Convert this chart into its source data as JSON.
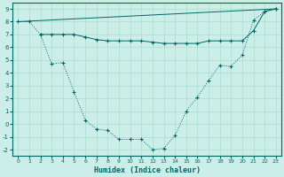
{
  "xlabel": "Humidex (Indice chaleur)",
  "bg_color": "#cceee8",
  "line_color": "#006666",
  "grid_color": "#aaddcc",
  "xlim": [
    -0.5,
    23.5
  ],
  "ylim": [
    -2.5,
    9.5
  ],
  "xticks": [
    0,
    1,
    2,
    3,
    4,
    5,
    6,
    7,
    8,
    9,
    10,
    11,
    12,
    13,
    14,
    15,
    16,
    17,
    18,
    19,
    20,
    21,
    22,
    23
  ],
  "yticks": [
    -2,
    -1,
    0,
    1,
    2,
    3,
    4,
    5,
    6,
    7,
    8,
    9
  ],
  "line1_x": [
    0,
    1,
    2,
    3,
    4,
    5,
    6,
    7,
    8,
    9,
    10,
    11,
    12,
    13,
    14,
    15,
    16,
    17,
    18,
    19,
    20,
    21,
    22,
    23
  ],
  "line1_y": [
    8.0,
    8.0,
    7.0,
    4.7,
    4.8,
    2.5,
    0.3,
    -0.4,
    -0.5,
    -1.2,
    -1.2,
    -1.2,
    -2.0,
    -1.9,
    -0.9,
    1.0,
    2.1,
    3.4,
    4.6,
    4.5,
    5.4,
    8.1,
    8.8,
    9.0
  ],
  "line2_x": [
    0,
    23
  ],
  "line2_y": [
    8.0,
    9.0
  ],
  "line3_x": [
    2,
    3,
    4,
    5,
    6,
    7,
    8,
    9,
    10,
    11,
    12,
    13,
    14,
    15,
    16,
    17,
    18,
    19,
    20,
    21,
    22,
    23
  ],
  "line3_y": [
    7.0,
    7.0,
    7.0,
    7.0,
    6.8,
    6.6,
    6.5,
    6.5,
    6.5,
    6.5,
    6.4,
    6.3,
    6.3,
    6.3,
    6.3,
    6.5,
    6.5,
    6.5,
    6.5,
    7.3,
    8.8,
    9.0
  ]
}
